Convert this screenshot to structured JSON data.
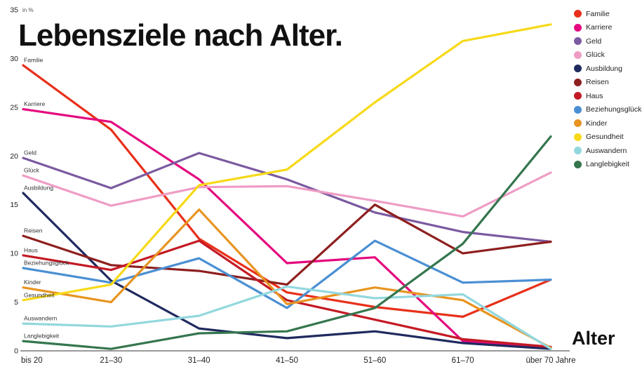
{
  "title": "Lebensziele nach Alter.",
  "y_axis_unit": "in %",
  "x_axis_label": "Alter",
  "chart_data": {
    "type": "line",
    "categories": [
      "bis 20",
      "21–30",
      "31–40",
      "41–50",
      "51–60",
      "61–70",
      "über 70 Jahre"
    ],
    "ylim": [
      0,
      35
    ],
    "yticks": [
      0,
      5,
      10,
      15,
      20,
      25,
      30,
      35
    ],
    "grid": false,
    "legend_position": "top-right",
    "series": [
      {
        "name": "Familie",
        "color": "#e8301a",
        "values": [
          29.3,
          22.7,
          11.5,
          6.0,
          4.5,
          3.5,
          7.3
        ]
      },
      {
        "name": "Karriere",
        "color": "#e5097f",
        "values": [
          24.8,
          23.5,
          17.6,
          9.0,
          9.6,
          1.0,
          0.3
        ]
      },
      {
        "name": "Geld",
        "color": "#7b5aa0",
        "values": [
          19.8,
          16.7,
          20.3,
          17.6,
          14.2,
          12.2,
          11.2
        ]
      },
      {
        "name": "Glück",
        "color": "#ef9cc5",
        "values": [
          18.0,
          14.9,
          16.8,
          16.9,
          15.4,
          13.8,
          18.3
        ]
      },
      {
        "name": "Ausbildung",
        "color": "#1f2a5e",
        "values": [
          16.2,
          7.2,
          2.3,
          1.3,
          2.0,
          0.8,
          0.2
        ]
      },
      {
        "name": "Reisen",
        "color": "#8e1f1f",
        "values": [
          11.8,
          8.8,
          8.2,
          6.8,
          15.0,
          10.0,
          11.2
        ]
      },
      {
        "name": "Haus",
        "color": "#c41a24",
        "values": [
          9.8,
          8.3,
          11.3,
          5.2,
          3.2,
          1.2,
          0.4
        ]
      },
      {
        "name": "Beziehungsglück",
        "color": "#4a8fd3",
        "values": [
          8.5,
          7.0,
          9.5,
          4.4,
          11.3,
          7.0,
          7.3
        ]
      },
      {
        "name": "Kinder",
        "color": "#e89420",
        "values": [
          6.5,
          5.0,
          14.5,
          4.8,
          6.5,
          5.2,
          0.3
        ]
      },
      {
        "name": "Gesundheit",
        "color": "#f7d917",
        "values": [
          5.2,
          6.8,
          17.0,
          18.6,
          25.5,
          31.8,
          33.5
        ]
      },
      {
        "name": "Auswandern",
        "color": "#92d8de",
        "values": [
          2.8,
          2.5,
          3.6,
          6.6,
          5.4,
          5.8,
          0.2
        ]
      },
      {
        "name": "Langlebigkeit",
        "color": "#35764e",
        "values": [
          1.0,
          0.2,
          1.8,
          2.0,
          4.4,
          11.0,
          22.0
        ]
      }
    ]
  }
}
